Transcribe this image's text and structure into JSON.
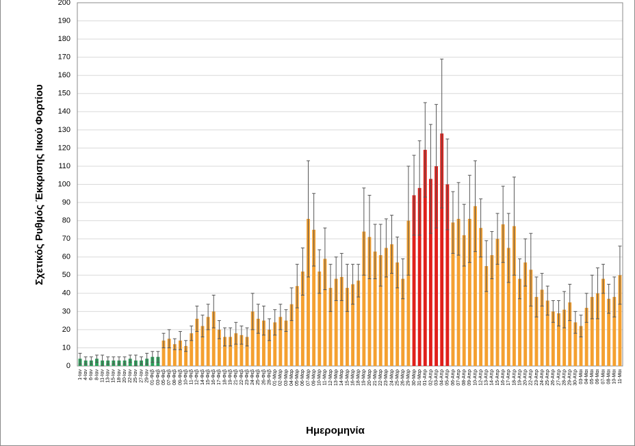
{
  "chart_data": {
    "type": "bar",
    "y_label": "Σχετικός Ρυθμός Έκκρισης Ιικού Φορτίου",
    "x_label": "Ημερομηνία",
    "categories": [
      "1-Ιαν",
      "4-Ιαν",
      "6-Ιαν",
      "8-Ιαν",
      "11-Ιαν",
      "13-Ιαν",
      "15-Ιαν",
      "18-Ιαν",
      "20-Ιαν",
      "22-Ιαν",
      "25-Ιαν",
      "27-Ιαν",
      "29-Ιαν",
      "01-Φεβ",
      "03-Φεβ",
      "05-Φεβ",
      "07-Φεβ",
      "08-Φεβ",
      "09-Φεβ",
      "10-Φεβ",
      "11-Φεβ",
      "12-Φεβ",
      "14-Φεβ",
      "15-Φεβ",
      "16-Φεβ",
      "17-Φεβ",
      "18-Φεβ",
      "19-Φεβ",
      "21-Φεβ",
      "22-Φεβ",
      "23-Φεβ",
      "24-Φεβ",
      "25-Φεβ",
      "26-Φεβ",
      "28-Φεβ",
      "01-Μαρ",
      "02-Μαρ",
      "03-Μαρ",
      "04-Μαρ",
      "05-Μαρ",
      "06-Μαρ",
      "07-Μαρ",
      "09-Μαρ",
      "10-Μαρ",
      "11-Μαρ",
      "12-Μαρ",
      "13-Μαρ",
      "14-Μαρ",
      "15-Μαρ",
      "16-Μαρ",
      "18-Μαρ",
      "19-Μαρ",
      "20-Μαρ",
      "21-Μαρ",
      "22-Μαρ",
      "23-Μαρ",
      "24-Μαρ",
      "25-Μαρ",
      "26-Μαρ",
      "29-Μαρ",
      "30-Μαρ",
      "31-Μαρ",
      "01-Απρ",
      "02-Απρ",
      "03-Απρ",
      "04-Απρ",
      "05-Απρ",
      "06-Απρ",
      "07-Απρ",
      "08-Απρ",
      "09-Απρ",
      "10-Απρ",
      "12-Απρ",
      "13-Απρ",
      "14-Απρ",
      "15-Απρ",
      "16-Απρ",
      "17-Απρ",
      "18-Απρ",
      "19-Απρ",
      "20-Απρ",
      "22-Απρ",
      "23-Απρ",
      "24-Απρ",
      "25-Απρ",
      "26-Απρ",
      "27-Απρ",
      "28-Απρ",
      "29-Απρ",
      "30-Απρ",
      "03-Μαι",
      "04-Μαι",
      "05-Μαι",
      "06-Μαι",
      "07-Μαι",
      "08-Μαι",
      "10-Μαι",
      "11-Μαι"
    ],
    "values": [
      4,
      3,
      3,
      4,
      3,
      3,
      3,
      3,
      3,
      4,
      3,
      3,
      4,
      5,
      5,
      14,
      15,
      12,
      14,
      11,
      18,
      26,
      22,
      27,
      30,
      20,
      16,
      16,
      18,
      17,
      16,
      30,
      26,
      25,
      20,
      24,
      27,
      25,
      34,
      44,
      52,
      81,
      75,
      52,
      59,
      43,
      48,
      49,
      43,
      45,
      47,
      74,
      71,
      63,
      61,
      65,
      67,
      57,
      48,
      80,
      94,
      98,
      119,
      103,
      110,
      128,
      100,
      79,
      81,
      72,
      81,
      88,
      76,
      55,
      61,
      70,
      78,
      65,
      77,
      48,
      57,
      53,
      38,
      42,
      36,
      30,
      29,
      31,
      35,
      24,
      22,
      32,
      38,
      40,
      48,
      37,
      38,
      50
    ],
    "errors": [
      3,
      2,
      2,
      2,
      3,
      2,
      2,
      2,
      2,
      2,
      3,
      2,
      3,
      3,
      3,
      4,
      5,
      3,
      5,
      3,
      4,
      7,
      6,
      7,
      9,
      5,
      5,
      5,
      6,
      5,
      5,
      10,
      8,
      8,
      6,
      7,
      7,
      6,
      9,
      12,
      13,
      32,
      20,
      12,
      17,
      13,
      12,
      13,
      13,
      11,
      9,
      24,
      23,
      15,
      17,
      16,
      16,
      14,
      11,
      30,
      22,
      26,
      26,
      30,
      34,
      41,
      25,
      17,
      20,
      17,
      24,
      25,
      16,
      14,
      13,
      14,
      21,
      19,
      27,
      11,
      13,
      20,
      11,
      9,
      8,
      6,
      7,
      10,
      10,
      6,
      6,
      8,
      12,
      14,
      8,
      8,
      11,
      16
    ],
    "colors": [
      "#2ca05a",
      "#2ca05a",
      "#2ca05a",
      "#2ca05a",
      "#2ca05a",
      "#2ca05a",
      "#2ca05a",
      "#2ca05a",
      "#2ca05a",
      "#2ca05a",
      "#2ca05a",
      "#2ca05a",
      "#2ca05a",
      "#2ca05a",
      "#2ca05a",
      "#f4a030",
      "#f4a030",
      "#f4a030",
      "#f4a030",
      "#f4a030",
      "#f4a030",
      "#f4a030",
      "#f4a030",
      "#f4a030",
      "#f4a030",
      "#f4a030",
      "#f4a030",
      "#f4a030",
      "#f4a030",
      "#f4a030",
      "#f4a030",
      "#f4a030",
      "#f4a030",
      "#f4a030",
      "#f4a030",
      "#f4a030",
      "#f4a030",
      "#f4a030",
      "#f4a030",
      "#f4a030",
      "#f4a030",
      "#f4a030",
      "#f4a030",
      "#f4a030",
      "#f4a030",
      "#f4a030",
      "#f4a030",
      "#f4a030",
      "#f4a030",
      "#f4a030",
      "#f4a030",
      "#f4a030",
      "#f4a030",
      "#f4a030",
      "#f4a030",
      "#f4a030",
      "#f4a030",
      "#f4a030",
      "#f4a030",
      "#f4a030",
      "#e0201b",
      "#e0201b",
      "#e0201b",
      "#e0201b",
      "#e0201b",
      "#e0201b",
      "#e0201b",
      "#f4a030",
      "#f4a030",
      "#f4a030",
      "#f4a030",
      "#f4a030",
      "#f4a030",
      "#f4a030",
      "#f4a030",
      "#f4a030",
      "#f4a030",
      "#f4a030",
      "#f4a030",
      "#f4a030",
      "#f4a030",
      "#f4a030",
      "#f4a030",
      "#f4a030",
      "#f4a030",
      "#f4a030",
      "#f4a030",
      "#f4a030",
      "#f4a030",
      "#f4a030",
      "#f4a030",
      "#f4a030",
      "#f4a030",
      "#f4a030",
      "#f4a030",
      "#f4a030",
      "#f4a030",
      "#f4a030"
    ],
    "ylim": [
      0,
      200
    ],
    "yticks": [
      0,
      10,
      20,
      30,
      40,
      50,
      60,
      70,
      80,
      90,
      100,
      110,
      120,
      130,
      140,
      150,
      160,
      170,
      180,
      190,
      200
    ],
    "grid": true
  }
}
